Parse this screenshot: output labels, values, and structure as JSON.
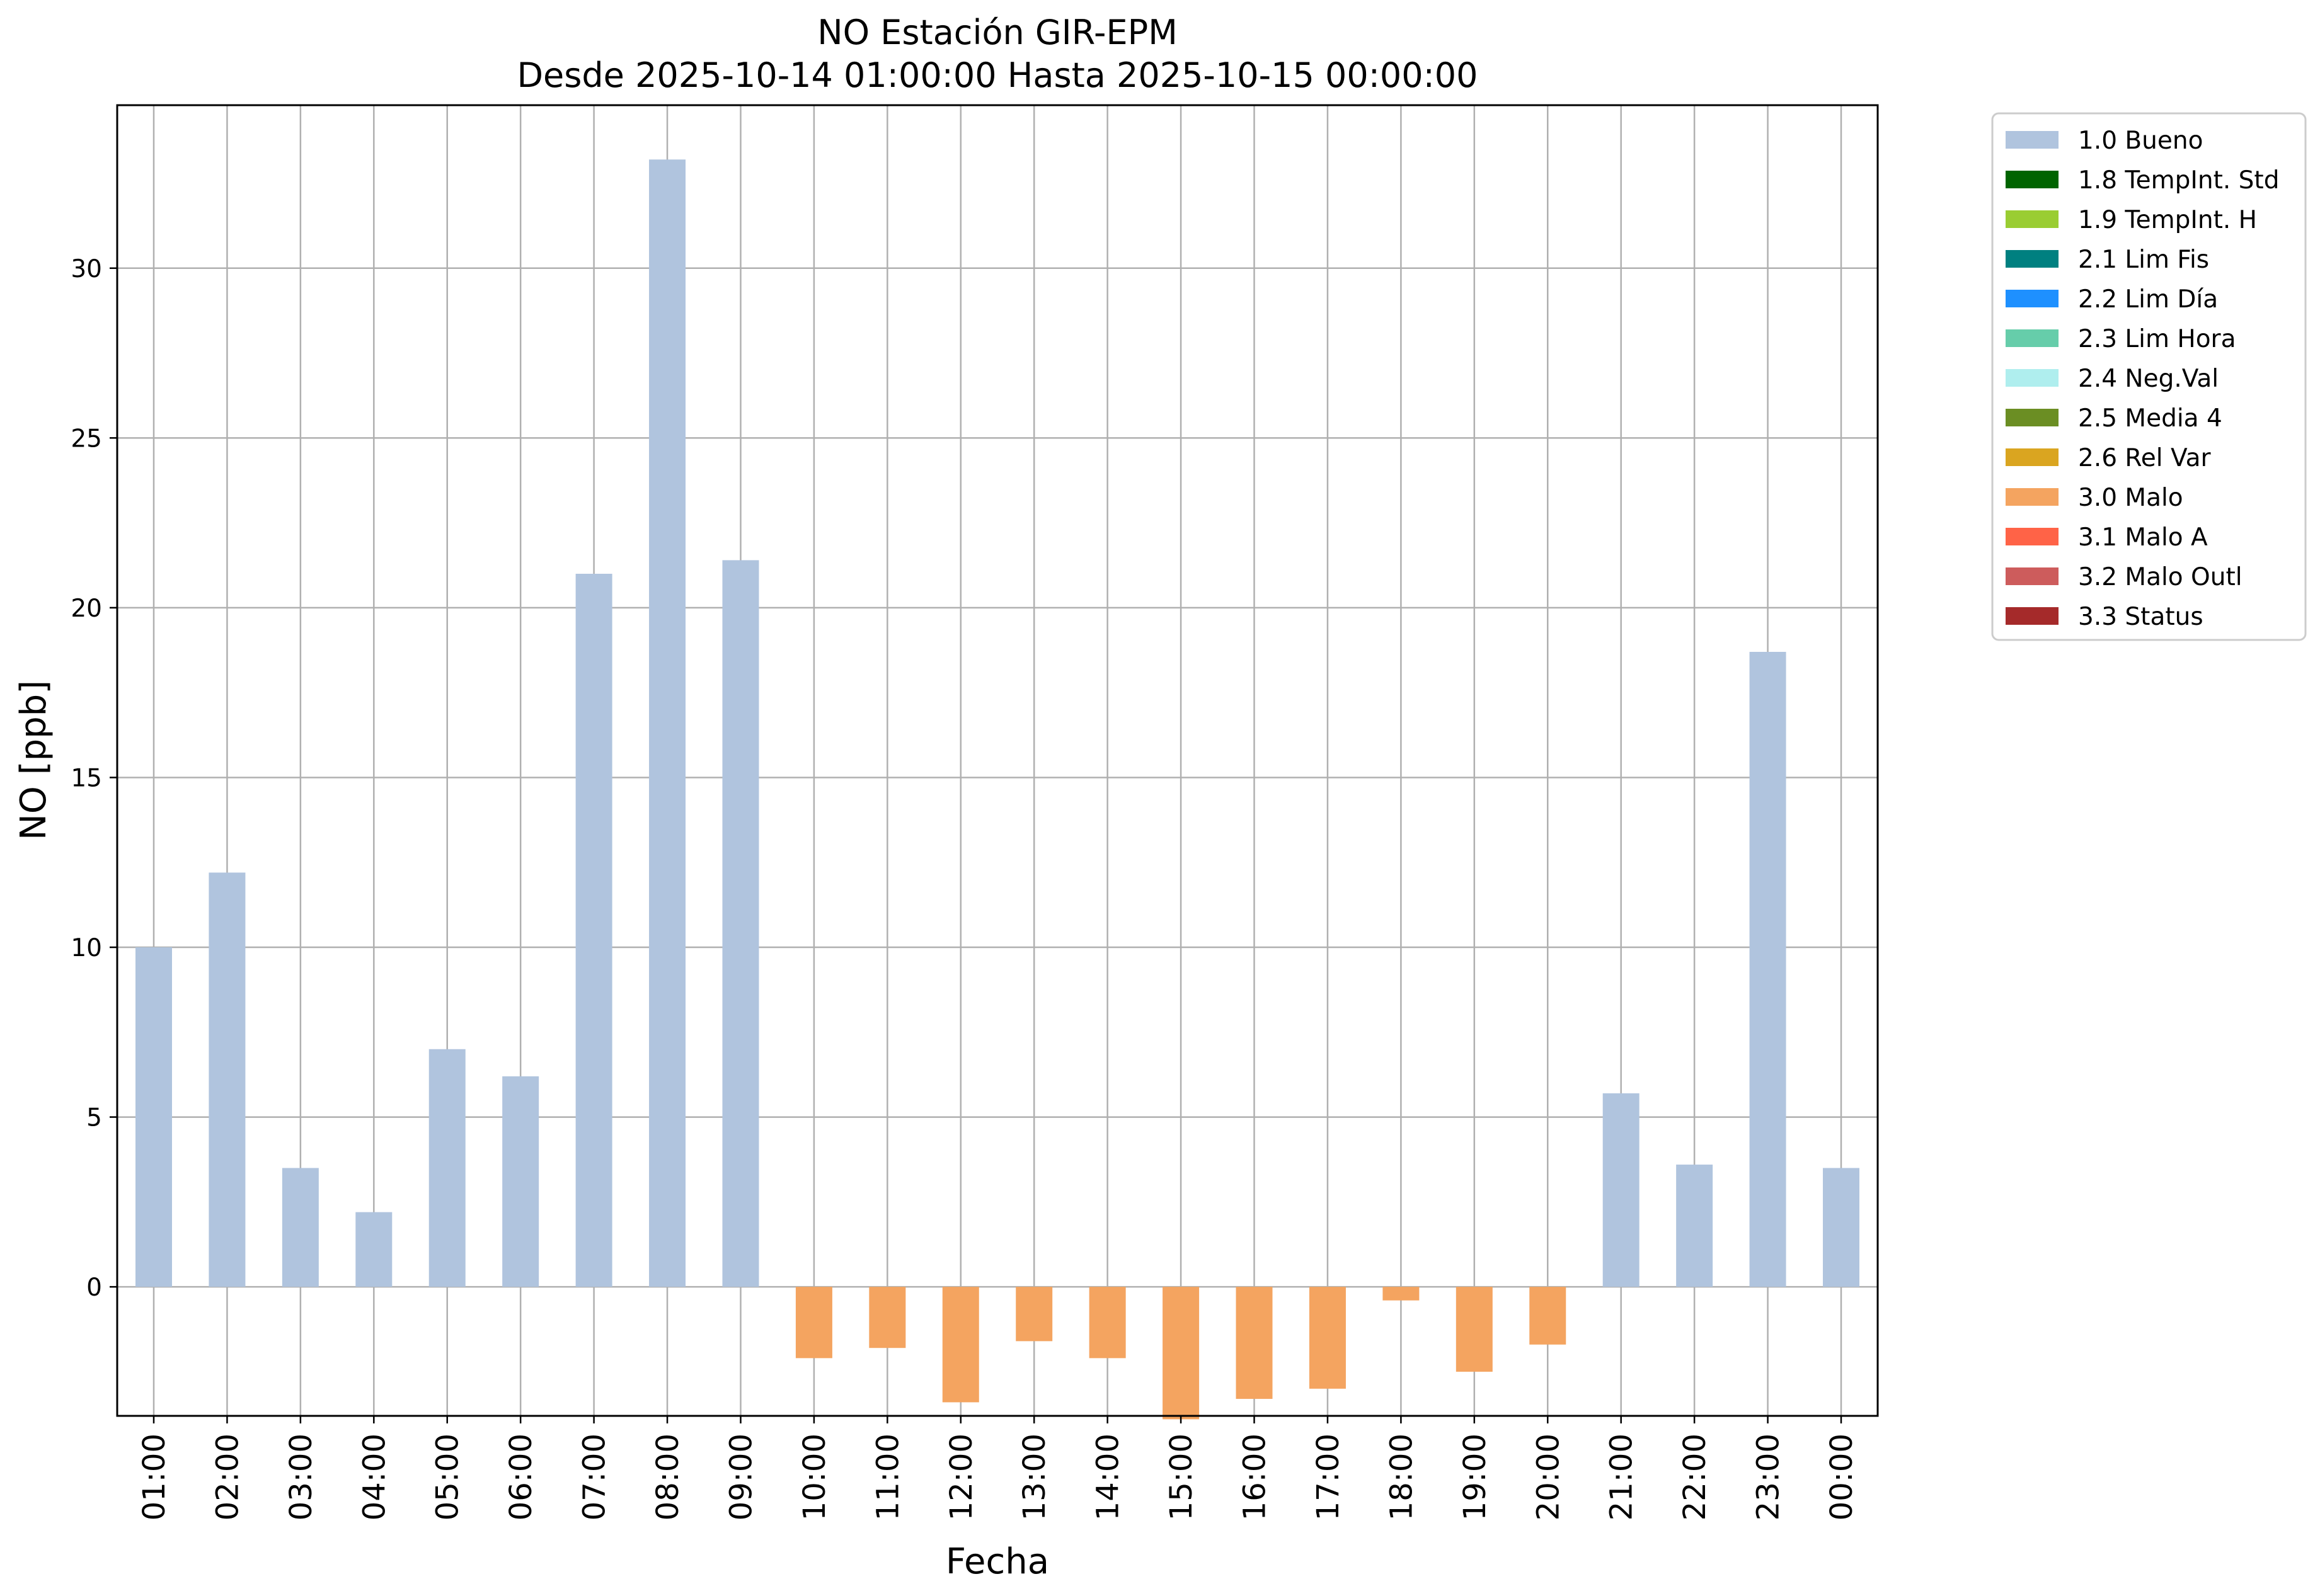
{
  "chart_data": {
    "type": "bar",
    "title": "NO Estación GIR-EPM",
    "subtitle": "Desde 2025-10-14 01:00:00 Hasta 2025-10-15 00:00:00",
    "xlabel": "Fecha",
    "ylabel": "NO [ppb]",
    "ylim": [
      -3.8,
      34.8
    ],
    "yticks": [
      0,
      5,
      10,
      15,
      20,
      25,
      30
    ],
    "grid": true,
    "legend_position": "outside-top-right",
    "categories": [
      "01:00",
      "02:00",
      "03:00",
      "04:00",
      "05:00",
      "06:00",
      "07:00",
      "08:00",
      "09:00",
      "10:00",
      "11:00",
      "12:00",
      "13:00",
      "14:00",
      "15:00",
      "16:00",
      "17:00",
      "18:00",
      "19:00",
      "20:00",
      "21:00",
      "22:00",
      "23:00",
      "00:00"
    ],
    "values": [
      10.0,
      12.2,
      3.5,
      2.2,
      7.0,
      6.2,
      21.0,
      33.2,
      21.4,
      -2.1,
      -1.8,
      -3.4,
      -1.6,
      -2.1,
      -3.9,
      -3.3,
      -3.0,
      -0.4,
      -2.5,
      -1.7,
      5.7,
      3.6,
      18.7,
      3.5
    ],
    "flags": [
      "1.0 Bueno",
      "1.0 Bueno",
      "1.0 Bueno",
      "1.0 Bueno",
      "1.0 Bueno",
      "1.0 Bueno",
      "1.0 Bueno",
      "1.0 Bueno",
      "1.0 Bueno",
      "3.0 Malo",
      "3.0 Malo",
      "3.0 Malo",
      "3.0 Malo",
      "3.0 Malo",
      "3.0 Malo",
      "3.0 Malo",
      "3.0 Malo",
      "3.0 Malo",
      "3.0 Malo",
      "3.0 Malo",
      "1.0 Bueno",
      "1.0 Bueno",
      "1.0 Bueno",
      "1.0 Bueno"
    ],
    "legend": [
      {
        "label": "1.0 Bueno",
        "color": "#b0c4de"
      },
      {
        "label": "1.8 TempInt. Std",
        "color": "#006400"
      },
      {
        "label": "1.9 TempInt. H",
        "color": "#9acd32"
      },
      {
        "label": "2.1 Lim Fis",
        "color": "#008080"
      },
      {
        "label": "2.2 Lim Día",
        "color": "#1e90ff"
      },
      {
        "label": "2.3 Lim Hora",
        "color": "#66cdaa"
      },
      {
        "label": "2.4 Neg.Val",
        "color": "#afeeee"
      },
      {
        "label": "2.5 Media 4",
        "color": "#6b8e23"
      },
      {
        "label": "2.6 Rel Var",
        "color": "#daa520"
      },
      {
        "label": "3.0 Malo",
        "color": "#f4a460"
      },
      {
        "label": "3.1 Malo A",
        "color": "#ff6347"
      },
      {
        "label": "3.2 Malo Outl",
        "color": "#cd5c5c"
      },
      {
        "label": "3.3 Status",
        "color": "#a52a2a"
      }
    ]
  }
}
